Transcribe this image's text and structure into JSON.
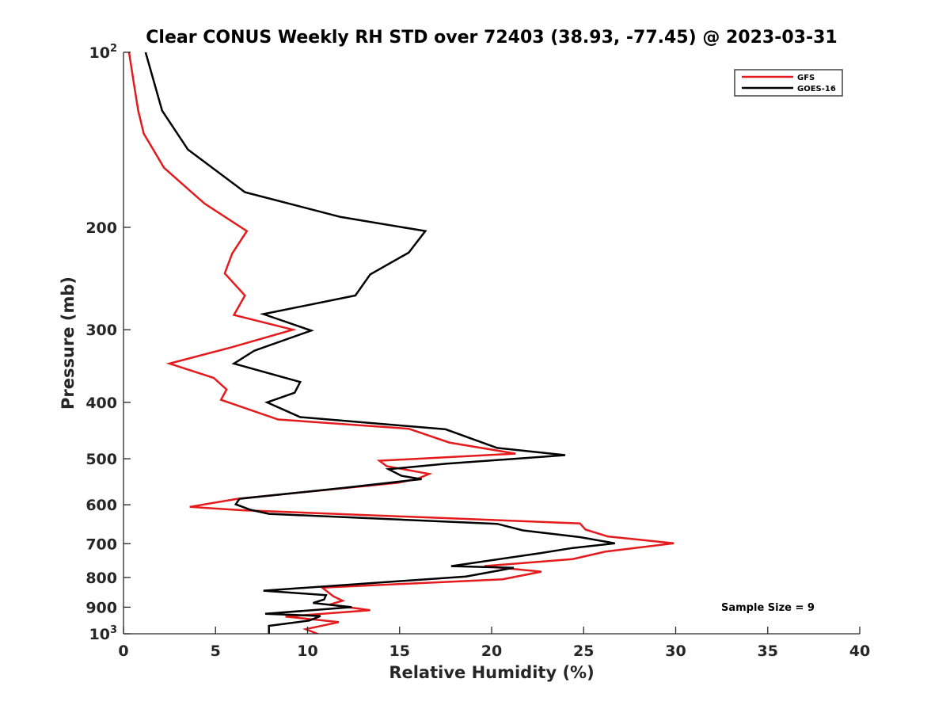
{
  "chart_data": {
    "type": "line",
    "title": "Clear CONUS Weekly RH STD over 72403 (38.93, -77.45) @ 2023-03-31",
    "xlabel": "Relative Humidity (%)",
    "ylabel": "Pressure (mb)",
    "xlim": [
      0,
      40
    ],
    "ylim": [
      100,
      1000
    ],
    "y_scale": "log",
    "y_reversed": true,
    "x_ticks": [
      "0",
      "5",
      "10",
      "15",
      "20",
      "25",
      "30",
      "35",
      "40"
    ],
    "y_ticks": [
      {
        "value": 100,
        "base": "10",
        "exp": "2"
      },
      {
        "value": 200,
        "label": "200"
      },
      {
        "value": 300,
        "label": "300"
      },
      {
        "value": 400,
        "label": "400"
      },
      {
        "value": 500,
        "label": "500"
      },
      {
        "value": 600,
        "label": "600"
      },
      {
        "value": 700,
        "label": "700"
      },
      {
        "value": 800,
        "label": "800"
      },
      {
        "value": 900,
        "label": "900"
      },
      {
        "value": 1000,
        "base": "10",
        "exp": "3"
      }
    ],
    "grid": false,
    "legend_position": "top-right",
    "annotation": "Sample Size = 9",
    "series": [
      {
        "name": "GFS",
        "color": "#e41a1c",
        "points": [
          [
            0.3,
            100
          ],
          [
            0.6,
            115
          ],
          [
            0.8,
            126
          ],
          [
            1.1,
            138
          ],
          [
            2.2,
            158
          ],
          [
            4.4,
            182
          ],
          [
            6.7,
            203
          ],
          [
            5.9,
            222
          ],
          [
            5.5,
            240
          ],
          [
            6.6,
            262
          ],
          [
            6.0,
            283
          ],
          [
            9.2,
            300
          ],
          [
            5.8,
            322
          ],
          [
            2.5,
            343
          ],
          [
            4.9,
            363
          ],
          [
            5.6,
            380
          ],
          [
            5.3,
            396
          ],
          [
            8.4,
            428
          ],
          [
            15.5,
            444
          ],
          [
            17.7,
            469
          ],
          [
            21.3,
            490
          ],
          [
            13.9,
            504
          ],
          [
            14.3,
            515
          ],
          [
            16.6,
            531
          ],
          [
            16.0,
            541
          ],
          [
            14.9,
            550
          ],
          [
            6.2,
            586
          ],
          [
            3.6,
            605
          ],
          [
            6.4,
            613
          ],
          [
            24.8,
            646
          ],
          [
            25.1,
            662
          ],
          [
            26.3,
            680
          ],
          [
            29.9,
            699
          ],
          [
            26.2,
            722
          ],
          [
            24.4,
            744
          ],
          [
            19.6,
            765
          ],
          [
            22.7,
            782
          ],
          [
            20.6,
            806
          ],
          [
            10.8,
            833
          ],
          [
            11.4,
            862
          ],
          [
            11.9,
            877
          ],
          [
            11.2,
            891
          ],
          [
            13.4,
            911
          ],
          [
            8.8,
            934
          ],
          [
            11.7,
            955
          ],
          [
            9.9,
            982
          ],
          [
            10.8,
            1008
          ]
        ]
      },
      {
        "name": "GOES-16",
        "color": "#000000",
        "points": [
          [
            1.2,
            100
          ],
          [
            2.1,
            126
          ],
          [
            3.5,
            147
          ],
          [
            6.6,
            174
          ],
          [
            11.8,
            192
          ],
          [
            16.4,
            203
          ],
          [
            15.5,
            221
          ],
          [
            13.4,
            241
          ],
          [
            12.6,
            262
          ],
          [
            7.6,
            282
          ],
          [
            10.2,
            301
          ],
          [
            7.1,
            326
          ],
          [
            6.0,
            343
          ],
          [
            9.6,
            369
          ],
          [
            9.3,
            385
          ],
          [
            7.8,
            400
          ],
          [
            9.6,
            424
          ],
          [
            17.5,
            445
          ],
          [
            20.3,
            479
          ],
          [
            24.0,
            493
          ],
          [
            17.5,
            510
          ],
          [
            14.4,
            521
          ],
          [
            15.1,
            535
          ],
          [
            16.2,
            542
          ],
          [
            12.0,
            561
          ],
          [
            6.3,
            586
          ],
          [
            6.1,
            599
          ],
          [
            6.9,
            612
          ],
          [
            7.9,
            622
          ],
          [
            20.3,
            647
          ],
          [
            21.7,
            664
          ],
          [
            24.8,
            682
          ],
          [
            26.7,
            699
          ],
          [
            24.4,
            712
          ],
          [
            22.6,
            727
          ],
          [
            17.8,
            765
          ],
          [
            21.2,
            770
          ],
          [
            18.6,
            797
          ],
          [
            7.6,
            843
          ],
          [
            11.0,
            858
          ],
          [
            10.9,
            873
          ],
          [
            10.3,
            885
          ],
          [
            12.4,
            900
          ],
          [
            7.7,
            924
          ],
          [
            10.7,
            932
          ],
          [
            10.1,
            949
          ],
          [
            7.9,
            969
          ],
          [
            7.9,
            1008
          ]
        ]
      }
    ]
  }
}
